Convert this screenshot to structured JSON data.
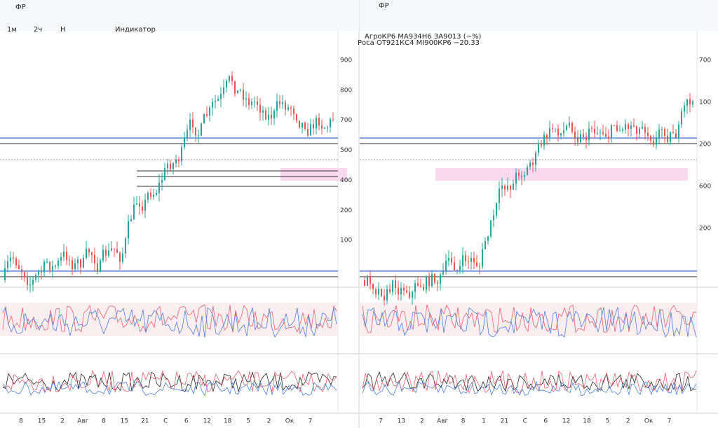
{
  "left": {
    "title": "ФР",
    "toolbar": [
      "1м",
      "2ч",
      "Н",
      "Индикатор"
    ],
    "price_labels": [
      "900",
      "800",
      "700",
      "500",
      "400",
      "200",
      "100"
    ],
    "time_labels": [
      "8",
      "15",
      "2",
      "Авг",
      "8",
      "15",
      "21",
      "С",
      "6",
      "12",
      "18",
      "5",
      "2",
      "Ок",
      "7"
    ]
  },
  "right": {
    "title": "ФР",
    "legend": [
      "АгроКР6 MA934Н6 ЗА9013 (~%)",
      "Роса ОТ921КС4 МI900КР6 −20.33"
    ],
    "price_labels": [
      "700",
      "100",
      "200",
      "600",
      "200"
    ],
    "time_labels": [
      "7",
      "13",
      "2",
      "Авг",
      "8",
      "1",
      "21",
      "С",
      "6",
      "12",
      "18",
      "5",
      "2",
      "Ок",
      "7"
    ]
  }
}
